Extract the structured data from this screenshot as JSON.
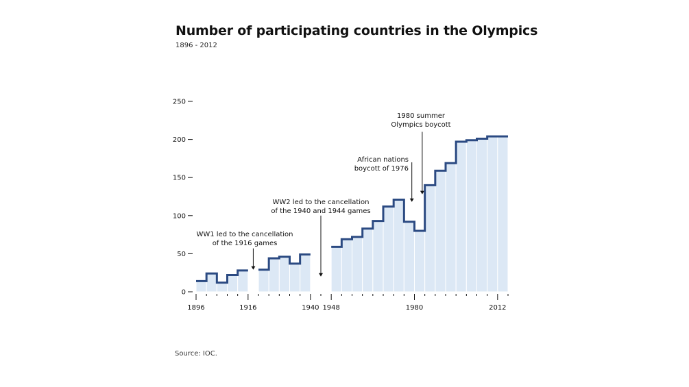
{
  "chart_data": {
    "type": "bar",
    "style": "step",
    "title": "Number of participating countries in the Olympics",
    "subtitle": "1896 - 2012",
    "source": "Source: IOC.",
    "xlabel": "",
    "ylabel": "",
    "ylim": [
      0,
      250
    ],
    "xlim": [
      1896,
      2016
    ],
    "yticks": [
      0,
      50,
      100,
      150,
      200,
      250
    ],
    "xticks_major": [
      1896,
      1916,
      1940,
      1948,
      1980,
      2012
    ],
    "xtick_interval": 4,
    "grid": false,
    "colors": {
      "fill": "#dce8f5",
      "line": "#2b4a82",
      "text": "#111111"
    },
    "categories": [
      1896,
      1900,
      1904,
      1908,
      1912,
      1920,
      1924,
      1928,
      1932,
      1936,
      1948,
      1952,
      1956,
      1960,
      1964,
      1968,
      1972,
      1976,
      1980,
      1984,
      1988,
      1992,
      1996,
      2000,
      2004,
      2008,
      2012
    ],
    "values": [
      14,
      24,
      12,
      22,
      28,
      29,
      44,
      46,
      37,
      49,
      59,
      69,
      72,
      83,
      93,
      112,
      121,
      92,
      80,
      140,
      159,
      169,
      197,
      199,
      201,
      204,
      204
    ],
    "annotations": [
      {
        "lines": [
          "WW1 led to the cancellation",
          "of the 1916 games"
        ],
        "year": 1918,
        "arrow_from": 57,
        "arrow_to": 29
      },
      {
        "lines": [
          "WW2 led to the cancellation",
          "of the 1940 and 1944 games"
        ],
        "year": 1944,
        "arrow_from": 100,
        "arrow_to": 20
      },
      {
        "lines": [
          "African nations",
          "boycott of 1976"
        ],
        "year": 1979,
        "arrow_from": 170,
        "arrow_to": 118
      },
      {
        "lines": [
          "1980 summer",
          "Olympics boycott"
        ],
        "year": 1983,
        "arrow_from": 210,
        "arrow_to": 128
      }
    ]
  }
}
